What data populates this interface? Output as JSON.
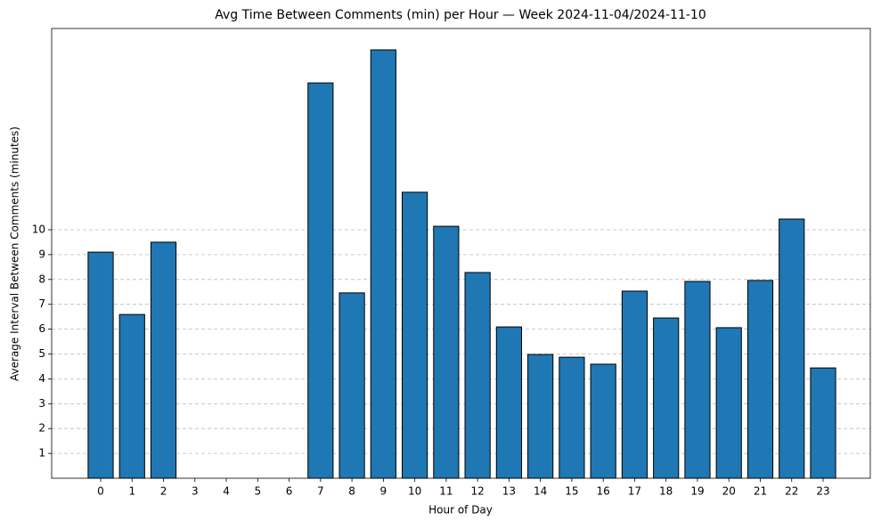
{
  "chart_data": {
    "type": "bar",
    "title": "Avg Time Between Comments (min) per Hour — Week 2024-11-04/2024-11-10",
    "x_label": "Hour of Day",
    "y_label": "Average Interval Between Comments (minutes)",
    "categories": [
      "0",
      "1",
      "2",
      "3",
      "4",
      "5",
      "6",
      "7",
      "8",
      "9",
      "10",
      "11",
      "12",
      "13",
      "14",
      "15",
      "16",
      "17",
      "18",
      "19",
      "20",
      "21",
      "22",
      "23"
    ],
    "values": [
      9.1,
      6.59,
      9.5,
      0,
      0,
      0,
      0,
      15.91,
      7.46,
      17.24,
      11.51,
      10.14,
      8.28,
      6.09,
      4.98,
      4.87,
      4.59,
      7.53,
      6.45,
      7.92,
      6.06,
      7.96,
      10.43,
      4.44
    ],
    "color": "#1f77b4",
    "edge_color": "#000000",
    "ylim": [
      0,
      18.1
    ],
    "yticks": [
      1,
      2,
      3,
      4,
      5,
      6,
      7,
      8,
      9,
      10
    ],
    "grid": true
  }
}
